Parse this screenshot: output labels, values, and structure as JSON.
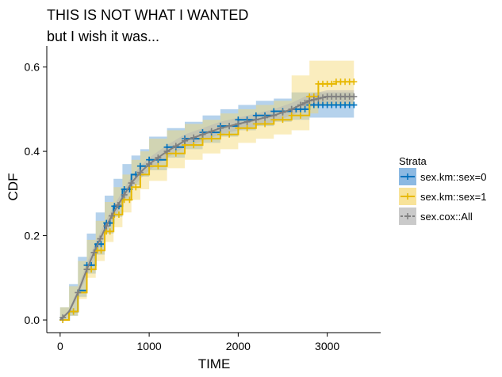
{
  "chart_data": {
    "type": "line",
    "title": "THIS IS NOT WHAT I WANTED",
    "subtitle": "but I wish it was...",
    "xlabel": "TIME",
    "ylabel": "CDF",
    "xlim": [
      -150,
      3600
    ],
    "ylim": [
      -0.03,
      0.65
    ],
    "x_ticks": [
      0,
      1000,
      2000,
      3000
    ],
    "x_tick_labels": [
      "0",
      "1000",
      "2000",
      "3000"
    ],
    "y_ticks": [
      0.0,
      0.2,
      0.4,
      0.6
    ],
    "y_tick_labels": [
      "0.0",
      "0.2",
      "0.4",
      "0.6"
    ],
    "grid": false,
    "legend": {
      "title": "Strata",
      "position": "right"
    },
    "series": [
      {
        "name": "sex.km::sex=0",
        "color": "#0072BD",
        "band_color": "#5B9BD5",
        "step": true,
        "points": [
          [
            0,
            0
          ],
          [
            100,
            0.02
          ],
          [
            200,
            0.07
          ],
          [
            300,
            0.13
          ],
          [
            400,
            0.18
          ],
          [
            500,
            0.23
          ],
          [
            600,
            0.27
          ],
          [
            700,
            0.31
          ],
          [
            800,
            0.345
          ],
          [
            900,
            0.365
          ],
          [
            1000,
            0.38
          ],
          [
            1200,
            0.41
          ],
          [
            1400,
            0.43
          ],
          [
            1600,
            0.445
          ],
          [
            1800,
            0.46
          ],
          [
            2000,
            0.475
          ],
          [
            2200,
            0.485
          ],
          [
            2400,
            0.495
          ],
          [
            2600,
            0.5
          ],
          [
            2800,
            0.51
          ],
          [
            3000,
            0.51
          ],
          [
            3200,
            0.51
          ],
          [
            3300,
            0.51
          ]
        ],
        "lower": [
          [
            0,
            0
          ],
          [
            100,
            0.01
          ],
          [
            200,
            0.055
          ],
          [
            300,
            0.11
          ],
          [
            400,
            0.155
          ],
          [
            500,
            0.205
          ],
          [
            600,
            0.245
          ],
          [
            700,
            0.285
          ],
          [
            800,
            0.32
          ],
          [
            900,
            0.34
          ],
          [
            1000,
            0.355
          ],
          [
            1200,
            0.385
          ],
          [
            1400,
            0.405
          ],
          [
            1600,
            0.42
          ],
          [
            1800,
            0.435
          ],
          [
            2000,
            0.45
          ],
          [
            2200,
            0.46
          ],
          [
            2400,
            0.47
          ],
          [
            2600,
            0.475
          ],
          [
            2800,
            0.48
          ],
          [
            3000,
            0.48
          ],
          [
            3300,
            0.48
          ]
        ],
        "upper": [
          [
            0,
            0
          ],
          [
            100,
            0.03
          ],
          [
            200,
            0.085
          ],
          [
            300,
            0.15
          ],
          [
            400,
            0.205
          ],
          [
            500,
            0.255
          ],
          [
            600,
            0.295
          ],
          [
            700,
            0.335
          ],
          [
            800,
            0.37
          ],
          [
            900,
            0.39
          ],
          [
            1000,
            0.405
          ],
          [
            1200,
            0.435
          ],
          [
            1400,
            0.455
          ],
          [
            1600,
            0.47
          ],
          [
            1800,
            0.485
          ],
          [
            2000,
            0.5
          ],
          [
            2200,
            0.51
          ],
          [
            2400,
            0.52
          ],
          [
            2600,
            0.525
          ],
          [
            2800,
            0.54
          ],
          [
            3000,
            0.54
          ],
          [
            3300,
            0.54
          ]
        ]
      },
      {
        "name": "sex.km::sex=1",
        "color": "#E7B800",
        "band_color": "#F5D76E",
        "step": true,
        "points": [
          [
            0,
            0
          ],
          [
            100,
            0.02
          ],
          [
            200,
            0.065
          ],
          [
            300,
            0.12
          ],
          [
            400,
            0.165
          ],
          [
            500,
            0.21
          ],
          [
            600,
            0.25
          ],
          [
            700,
            0.285
          ],
          [
            800,
            0.315
          ],
          [
            900,
            0.345
          ],
          [
            1000,
            0.365
          ],
          [
            1200,
            0.395
          ],
          [
            1400,
            0.415
          ],
          [
            1600,
            0.43
          ],
          [
            1800,
            0.44
          ],
          [
            2000,
            0.455
          ],
          [
            2200,
            0.465
          ],
          [
            2400,
            0.475
          ],
          [
            2600,
            0.485
          ],
          [
            2800,
            0.53
          ],
          [
            2900,
            0.56
          ],
          [
            3100,
            0.565
          ],
          [
            3300,
            0.565
          ]
        ],
        "lower": [
          [
            0,
            0
          ],
          [
            100,
            0.01
          ],
          [
            200,
            0.05
          ],
          [
            300,
            0.1
          ],
          [
            400,
            0.14
          ],
          [
            500,
            0.185
          ],
          [
            600,
            0.22
          ],
          [
            700,
            0.255
          ],
          [
            800,
            0.285
          ],
          [
            900,
            0.31
          ],
          [
            1000,
            0.33
          ],
          [
            1200,
            0.36
          ],
          [
            1400,
            0.38
          ],
          [
            1600,
            0.395
          ],
          [
            1800,
            0.405
          ],
          [
            2000,
            0.42
          ],
          [
            2200,
            0.43
          ],
          [
            2400,
            0.44
          ],
          [
            2600,
            0.45
          ],
          [
            2800,
            0.49
          ],
          [
            2900,
            0.51
          ],
          [
            3300,
            0.51
          ]
        ],
        "upper": [
          [
            0,
            0
          ],
          [
            100,
            0.03
          ],
          [
            200,
            0.08
          ],
          [
            300,
            0.14
          ],
          [
            400,
            0.19
          ],
          [
            500,
            0.235
          ],
          [
            600,
            0.28
          ],
          [
            700,
            0.315
          ],
          [
            800,
            0.345
          ],
          [
            900,
            0.38
          ],
          [
            1000,
            0.4
          ],
          [
            1200,
            0.43
          ],
          [
            1400,
            0.45
          ],
          [
            1600,
            0.465
          ],
          [
            1800,
            0.475
          ],
          [
            2000,
            0.49
          ],
          [
            2200,
            0.5
          ],
          [
            2400,
            0.51
          ],
          [
            2600,
            0.52
          ],
          [
            2800,
            0.58
          ],
          [
            2900,
            0.615
          ],
          [
            3300,
            0.615
          ]
        ]
      },
      {
        "name": "sex.cox::All",
        "color": "#808080",
        "band_color": "#B3B3B3",
        "step": false,
        "points": [
          [
            0,
            0
          ],
          [
            100,
            0.02
          ],
          [
            200,
            0.065
          ],
          [
            300,
            0.12
          ],
          [
            400,
            0.17
          ],
          [
            500,
            0.215
          ],
          [
            600,
            0.255
          ],
          [
            700,
            0.29
          ],
          [
            800,
            0.325
          ],
          [
            900,
            0.35
          ],
          [
            1000,
            0.37
          ],
          [
            1200,
            0.4
          ],
          [
            1400,
            0.425
          ],
          [
            1600,
            0.44
          ],
          [
            1800,
            0.455
          ],
          [
            2000,
            0.465
          ],
          [
            2200,
            0.475
          ],
          [
            2400,
            0.485
          ],
          [
            2600,
            0.5
          ],
          [
            2700,
            0.51
          ],
          [
            2800,
            0.52
          ],
          [
            3000,
            0.53
          ],
          [
            3300,
            0.53
          ]
        ],
        "lower": [
          [
            0,
            0
          ],
          [
            100,
            0.015
          ],
          [
            200,
            0.055
          ],
          [
            300,
            0.105
          ],
          [
            400,
            0.155
          ],
          [
            500,
            0.2
          ],
          [
            600,
            0.24
          ],
          [
            700,
            0.275
          ],
          [
            800,
            0.31
          ],
          [
            900,
            0.335
          ],
          [
            1000,
            0.355
          ],
          [
            1200,
            0.385
          ],
          [
            1400,
            0.41
          ],
          [
            1600,
            0.425
          ],
          [
            1800,
            0.44
          ],
          [
            2000,
            0.45
          ],
          [
            2200,
            0.46
          ],
          [
            2400,
            0.47
          ],
          [
            2600,
            0.485
          ],
          [
            2800,
            0.505
          ],
          [
            3000,
            0.515
          ],
          [
            3300,
            0.515
          ]
        ],
        "upper": [
          [
            0,
            0
          ],
          [
            100,
            0.025
          ],
          [
            200,
            0.075
          ],
          [
            300,
            0.135
          ],
          [
            400,
            0.185
          ],
          [
            500,
            0.23
          ],
          [
            600,
            0.27
          ],
          [
            700,
            0.305
          ],
          [
            800,
            0.34
          ],
          [
            900,
            0.365
          ],
          [
            1000,
            0.385
          ],
          [
            1200,
            0.415
          ],
          [
            1400,
            0.44
          ],
          [
            1600,
            0.455
          ],
          [
            1800,
            0.47
          ],
          [
            2000,
            0.48
          ],
          [
            2200,
            0.49
          ],
          [
            2400,
            0.5
          ],
          [
            2600,
            0.515
          ],
          [
            2800,
            0.535
          ],
          [
            3000,
            0.545
          ],
          [
            3300,
            0.545
          ]
        ]
      }
    ],
    "censor_times": {
      "sex.km::sex=0": [
        30,
        150,
        300,
        350,
        420,
        460,
        520,
        560,
        610,
        660,
        720,
        780,
        850,
        900,
        1000,
        1100,
        1200,
        1300,
        1400,
        1500,
        1600,
        1700,
        1800,
        1900,
        2000,
        2100,
        2200,
        2300,
        2400,
        2500,
        2600,
        2650,
        2700,
        2750,
        2800,
        2850,
        2900,
        2950,
        3000,
        3050,
        3100,
        3150,
        3200,
        3250,
        3300
      ],
      "sex.km::sex=1": [
        30,
        150,
        300,
        350,
        420,
        460,
        520,
        560,
        610,
        660,
        720,
        780,
        850,
        900,
        1000,
        1100,
        1200,
        1300,
        1400,
        1500,
        1600,
        1700,
        1800,
        1900,
        2000,
        2100,
        2200,
        2300,
        2400,
        2500,
        2600,
        2700,
        2800,
        2850,
        2900,
        2950,
        3000,
        3050,
        3100,
        3150,
        3200,
        3250,
        3300
      ],
      "sex.cox::All": [
        30,
        200,
        300,
        380,
        450,
        520,
        580,
        650,
        720,
        800,
        900,
        1000,
        1100,
        1200,
        1300,
        1400,
        1500,
        1600,
        1700,
        1800,
        1900,
        2000,
        2100,
        2200,
        2300,
        2400,
        2500,
        2600,
        2700,
        2750,
        2800,
        2850,
        2900,
        2950,
        3000,
        3050,
        3100,
        3150,
        3200,
        3250,
        3300
      ]
    }
  }
}
